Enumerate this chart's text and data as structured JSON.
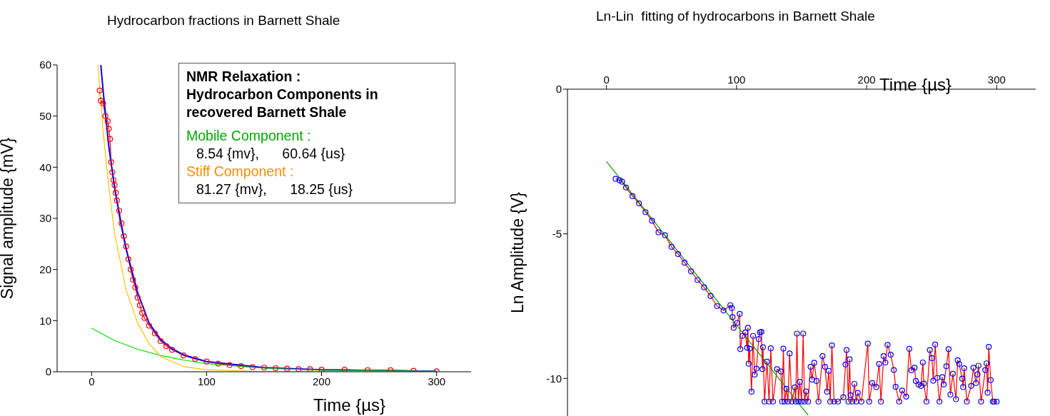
{
  "chart_data": [
    {
      "type": "line",
      "title": "Hydrocarbon fractions in Barnett Shale",
      "xlabel": "Time {µs}",
      "ylabel": "Signal amplitude {mV}",
      "xlim": [
        -30,
        330
      ],
      "xticks": [
        0,
        100,
        200,
        300
      ],
      "ylim": [
        0,
        60
      ],
      "yticks": [
        0,
        10,
        20,
        30,
        40,
        50,
        60
      ],
      "marker": "circle",
      "annotations": [
        "NMR Relaxation :",
        "Hydrocarbon Components in",
        "recovered Barnett Shale",
        "Mobile Component :",
        "8.54 {mv},      60.64 {us}",
        "Stiff Component :",
        "81.27 {mv},      18.25 {us}"
      ],
      "series": [
        {
          "color": "#ff0000",
          "x": [
            7,
            8,
            10,
            12,
            14,
            15,
            16,
            17,
            18,
            19,
            20,
            21,
            22,
            24,
            26,
            28,
            30,
            32,
            34,
            36,
            38,
            40,
            42,
            44,
            46,
            50,
            55,
            60,
            65,
            70,
            80,
            90,
            100,
            110,
            120,
            130,
            140,
            150,
            160,
            170,
            180,
            190,
            200,
            220,
            240,
            260,
            280,
            300
          ],
          "values": [
            55,
            53,
            52.5,
            50,
            49,
            47.5,
            45.5,
            41,
            39,
            37.5,
            36.5,
            35,
            33.5,
            31.5,
            29,
            26.5,
            24.5,
            22,
            20,
            18,
            16.5,
            14.5,
            13,
            11.5,
            10.5,
            9,
            7.5,
            6,
            5,
            4.3,
            3.2,
            2.5,
            2,
            1.6,
            1.3,
            1.1,
            0.9,
            0.8,
            0.7,
            0.6,
            0.5,
            0.5,
            0.4,
            0.4,
            0.3,
            0.3,
            0.2,
            0.1
          ]
        },
        {
          "color": "#0000ff",
          "marker": "none",
          "x": [
            8,
            10,
            15,
            20,
            25,
            30,
            40,
            50,
            60,
            70,
            80,
            100,
            150,
            200,
            300
          ],
          "values": [
            60,
            55,
            44,
            36,
            29.5,
            24,
            15.5,
            9.5,
            6.3,
            4.5,
            3.3,
            2,
            0.8,
            0.4,
            0.1
          ]
        },
        {
          "color": "#00e000",
          "marker": "none",
          "x": [
            0,
            20,
            40,
            60,
            80,
            100,
            150,
            200,
            300
          ],
          "values": [
            8.5,
            6.1,
            4.4,
            3.2,
            2.3,
            1.6,
            0.7,
            0.3,
            0.1
          ]
        },
        {
          "color": "#ffc000",
          "marker": "none",
          "x": [
            5.5,
            10,
            15,
            20,
            30,
            40,
            50,
            60,
            80,
            100,
            150,
            300
          ],
          "values": [
            60,
            47,
            36,
            27,
            16,
            9.5,
            5.5,
            3,
            1,
            0.4,
            0,
            0
          ]
        }
      ]
    },
    {
      "type": "line",
      "title": "Ln-Lin  fitting of hydrocarbons in Barnett Shale",
      "xlabel": "Time {µs}",
      "ylabel": "Ln  Amplitude  {V}",
      "xlim": [
        -30,
        330
      ],
      "xticks": [
        0,
        100,
        200,
        300
      ],
      "ylim": [
        -11.3,
        0
      ],
      "yticks": [
        0,
        -5,
        -10
      ],
      "marker": "circle",
      "series": [
        {
          "color": "#ff0000",
          "x": [
            7,
            10,
            12,
            15,
            20,
            25,
            30,
            35,
            40,
            45,
            50,
            55,
            60,
            65,
            70,
            75,
            80,
            85,
            90,
            95.2,
            96.4,
            96.9,
            97.8,
            100.4,
            102.4,
            102.9,
            104.5,
            106.7,
            108.1,
            108.7,
            109.3,
            110.1,
            111.5,
            112.7,
            113.9,
            115.3,
            117,
            117.9,
            119.1,
            119.9,
            120.3,
            121.5,
            123.4,
            125,
            126.3,
            128,
            131.1,
            134.1,
            135,
            136,
            137,
            138.3,
            139.5,
            140.8,
            142.5,
            144.8,
            145.5,
            146.4,
            147.5,
            148.6,
            150,
            151.2,
            152.3,
            153.4,
            155,
            156.9,
            158,
            159.7,
            161.5,
            163,
            166.1,
            168,
            169.6,
            170.9,
            172,
            173.3,
            175,
            178,
            182.1,
            183.8,
            184.6,
            186,
            186.9,
            187.7,
            189,
            190.6,
            192,
            193.2,
            196,
            200.9,
            202,
            204.3,
            207.4,
            209.6,
            211,
            213.1,
            214.4,
            216.1,
            218.5,
            220.9,
            222.3,
            225,
            227.3,
            230.4,
            232.8,
            234.4,
            236.9,
            237.8,
            239.9,
            241.8,
            243.2,
            244,
            246,
            248.6,
            250.2,
            251.2,
            252.7,
            254.3,
            256,
            258.2,
            259.3,
            261.3,
            263,
            264.4,
            266.3,
            268.7,
            270,
            271.1,
            273.5,
            274.2,
            275,
            277,
            280.4,
            282.1,
            284.1,
            285.2,
            286,
            288,
            291.2,
            292.2,
            293,
            293.9,
            295.4,
            297,
            298,
            300
          ],
          "values": [
            -3.1,
            -3.15,
            -3.2,
            -3.4,
            -3.7,
            -3.95,
            -4.25,
            -4.55,
            -4.95,
            -5.05,
            -5.45,
            -5.7,
            -6,
            -6.3,
            -6.6,
            -6.85,
            -7.15,
            -7.5,
            -7.65,
            -7.47,
            -7.57,
            -7.88,
            -8.25,
            -8.08,
            -7.77,
            -8.99,
            -8.53,
            -8.41,
            -8.94,
            -8.25,
            -9.49,
            -8.97,
            -10.46,
            -8.53,
            -9.87,
            -9.66,
            -8.64,
            -8.41,
            -8.39,
            -9.68,
            -8.92,
            -10.8,
            -9.42,
            -10.8,
            -8.96,
            -10.8,
            -9.68,
            -9.76,
            -10.8,
            -8.97,
            -10.8,
            -10.36,
            -10.8,
            -9.14,
            -10.8,
            -10.31,
            -10.8,
            -8.45,
            -10.8,
            -10.12,
            -10.8,
            -8.45,
            -10.8,
            -10.45,
            -10.8,
            -9.6,
            -10.04,
            -9.46,
            -10.09,
            -10.8,
            -9.23,
            -9.6,
            -10.46,
            -9.74,
            -10.8,
            -8.86,
            -10.8,
            -10.8,
            -10.65,
            -9.52,
            -9.02,
            -10.8,
            -9.34,
            -10.58,
            -10.8,
            -10.19,
            -10.8,
            -10.5,
            -10.8,
            -8.8,
            -10.8,
            -10.16,
            -10.3,
            -9.5,
            -10.8,
            -9.23,
            -9.45,
            -8.84,
            -9.18,
            -9.71,
            -10.29,
            -10.8,
            -10.42,
            -10.63,
            -8.98,
            -9.72,
            -9.63,
            -10.09,
            -10.21,
            -10.26,
            -9.45,
            -10.18,
            -10.8,
            -9.02,
            -9.3,
            -10.08,
            -8.83,
            -9.98,
            -10.8,
            -9.96,
            -10.21,
            -9.58,
            -8.99,
            -10.56,
            -9.84,
            -10.72,
            -9.37,
            -9.5,
            -10.01,
            -10.3,
            -9.65,
            -10.8,
            -10.26,
            -9.63,
            -10.16,
            -9.86,
            -9.56,
            -10.8,
            -9.71,
            -9.48,
            -10.49,
            -8.91,
            -10.06,
            -10.8,
            -10.8,
            -10.8
          ]
        },
        {
          "color": "#00a000",
          "type": "line",
          "marker": "none",
          "x": [
            0,
            155
          ],
          "values": [
            -2.5,
            -11.27
          ]
        }
      ]
    }
  ]
}
